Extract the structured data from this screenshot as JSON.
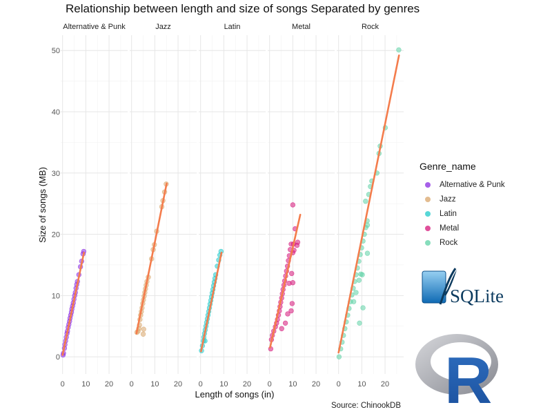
{
  "chart_data": {
    "type": "scatter",
    "title": "Relationship between length and size of songs Separated by genres",
    "xlabel": "Length of songs (in)",
    "ylabel": "Size of songs (MB)",
    "xlim": [
      -0.8,
      28
    ],
    "ylim": [
      -2.8,
      52.5
    ],
    "x_ticks": [
      0,
      10,
      20
    ],
    "y_ticks": [
      0,
      10,
      20,
      30,
      40,
      50
    ],
    "grid": true,
    "facets": [
      "Alternative & Punk",
      "Jazz",
      "Latin",
      "Metal",
      "Rock"
    ],
    "legend_title": "Genre_name",
    "legend_position": "right",
    "trend_color": "#f47c4c",
    "series": [
      {
        "name": "Alternative & Punk",
        "color": "#8a2be2",
        "points": [
          [
            0.2,
            0.3
          ],
          [
            0.4,
            0.6
          ],
          [
            0.8,
            1.4
          ],
          [
            1.0,
            2.0
          ],
          [
            1.3,
            2.6
          ],
          [
            1.6,
            3.2
          ],
          [
            1.9,
            3.8
          ],
          [
            2.1,
            4.2
          ],
          [
            2.4,
            4.8
          ],
          [
            2.7,
            5.3
          ],
          [
            3.0,
            5.8
          ],
          [
            3.2,
            6.3
          ],
          [
            3.5,
            6.8
          ],
          [
            3.8,
            7.3
          ],
          [
            4.0,
            7.8
          ],
          [
            4.3,
            8.3
          ],
          [
            4.6,
            8.8
          ],
          [
            4.9,
            9.4
          ],
          [
            5.2,
            10.0
          ],
          [
            5.5,
            10.5
          ],
          [
            5.8,
            11.2
          ],
          [
            6.1,
            11.8
          ],
          [
            6.4,
            12.3
          ],
          [
            7.0,
            13.4
          ],
          [
            7.7,
            14.7
          ],
          [
            8.2,
            15.6
          ],
          [
            8.8,
            16.8
          ],
          [
            9.1,
            17.2
          ]
        ],
        "trend": [
          [
            0,
            0.3
          ],
          [
            9.2,
            17.0
          ]
        ]
      },
      {
        "name": "Jazz",
        "color": "#d9a66b",
        "points": [
          [
            2.3,
            4.0
          ],
          [
            2.8,
            4.2
          ],
          [
            3.1,
            4.6
          ],
          [
            3.4,
            5.2
          ],
          [
            3.6,
            6.1
          ],
          [
            3.9,
            6.8
          ],
          [
            4.2,
            7.4
          ],
          [
            4.5,
            8.0
          ],
          [
            4.8,
            8.7
          ],
          [
            5.1,
            9.3
          ],
          [
            5.4,
            9.9
          ],
          [
            5.7,
            10.5
          ],
          [
            6.0,
            11.1
          ],
          [
            6.3,
            11.7
          ],
          [
            6.6,
            12.3
          ],
          [
            7.2,
            13.0
          ],
          [
            8.6,
            16.0
          ],
          [
            9.3,
            17.5
          ],
          [
            9.8,
            18.3
          ],
          [
            10.8,
            20.5
          ],
          [
            13.0,
            24.5
          ],
          [
            13.5,
            25.5
          ],
          [
            14.2,
            26.9
          ],
          [
            14.9,
            28.2
          ],
          [
            5.0,
            3.7
          ],
          [
            5.2,
            4.5
          ]
        ],
        "trend": [
          [
            2.1,
            3.8
          ],
          [
            15.1,
            28.3
          ]
        ]
      },
      {
        "name": "Latin",
        "color": "#20c9c9",
        "points": [
          [
            0.4,
            1.0
          ],
          [
            0.8,
            1.8
          ],
          [
            1.2,
            2.6
          ],
          [
            1.4,
            3.2
          ],
          [
            1.7,
            3.8
          ],
          [
            2.0,
            4.4
          ],
          [
            2.3,
            5.0
          ],
          [
            2.6,
            5.6
          ],
          [
            2.9,
            6.2
          ],
          [
            3.2,
            6.8
          ],
          [
            3.5,
            7.4
          ],
          [
            3.8,
            8.0
          ],
          [
            4.1,
            8.6
          ],
          [
            4.4,
            9.2
          ],
          [
            4.7,
            9.8
          ],
          [
            5.0,
            10.4
          ],
          [
            5.3,
            11.0
          ],
          [
            5.6,
            11.6
          ],
          [
            5.9,
            12.2
          ],
          [
            6.2,
            12.8
          ],
          [
            6.5,
            13.4
          ],
          [
            7.2,
            14.8
          ],
          [
            7.8,
            15.8
          ],
          [
            8.3,
            16.6
          ],
          [
            8.8,
            17.2
          ],
          [
            1.9,
            2.6
          ]
        ],
        "trend": [
          [
            0.2,
            0.9
          ],
          [
            9.0,
            17.0
          ]
        ]
      },
      {
        "name": "Metal",
        "color": "#d6157a",
        "points": [
          [
            0.5,
            1.3
          ],
          [
            0.8,
            2.8
          ],
          [
            1.2,
            3.5
          ],
          [
            1.8,
            4.2
          ],
          [
            2.5,
            4.9
          ],
          [
            3.0,
            5.5
          ],
          [
            3.4,
            6.1
          ],
          [
            3.8,
            6.8
          ],
          [
            4.2,
            7.5
          ],
          [
            4.5,
            8.2
          ],
          [
            4.8,
            8.9
          ],
          [
            5.2,
            9.6
          ],
          [
            5.5,
            10.3
          ],
          [
            5.8,
            11.0
          ],
          [
            6.2,
            11.7
          ],
          [
            6.5,
            12.4
          ],
          [
            6.9,
            13.2
          ],
          [
            7.3,
            14.0
          ],
          [
            7.7,
            14.8
          ],
          [
            8.1,
            15.7
          ],
          [
            8.5,
            16.5
          ],
          [
            8.9,
            17.5
          ],
          [
            9.3,
            18.4
          ],
          [
            10.0,
            17.0
          ],
          [
            10.5,
            17.4
          ],
          [
            10.3,
            18.4
          ],
          [
            11.8,
            18.2
          ],
          [
            12.1,
            18.7
          ],
          [
            11.0,
            20.9
          ],
          [
            10.0,
            24.8
          ],
          [
            8.4,
            12.0
          ],
          [
            9.5,
            13.6
          ],
          [
            7.8,
            7.0
          ],
          [
            6.8,
            5.5
          ],
          [
            5.2,
            4.6
          ],
          [
            9.7,
            8.7
          ],
          [
            9.3,
            7.5
          ],
          [
            10.0,
            12.1
          ]
        ],
        "trend": [
          [
            0.2,
            1.5
          ],
          [
            13.2,
            23.2
          ]
        ]
      },
      {
        "name": "Rock",
        "color": "#5fd1a5",
        "points": [
          [
            0.2,
            0.0
          ],
          [
            0.9,
            1.3
          ],
          [
            1.5,
            2.4
          ],
          [
            2.1,
            3.5
          ],
          [
            2.7,
            4.6
          ],
          [
            3.3,
            5.7
          ],
          [
            3.9,
            6.8
          ],
          [
            4.5,
            7.9
          ],
          [
            5.1,
            9.0
          ],
          [
            5.7,
            10.1
          ],
          [
            6.3,
            11.2
          ],
          [
            6.9,
            12.3
          ],
          [
            7.5,
            13.4
          ],
          [
            8.1,
            14.5
          ],
          [
            8.7,
            15.6
          ],
          [
            9.3,
            16.7
          ],
          [
            9.9,
            17.8
          ],
          [
            10.5,
            18.9
          ],
          [
            11.1,
            20.0
          ],
          [
            11.7,
            21.1
          ],
          [
            12.3,
            22.2
          ],
          [
            6.5,
            9.0
          ],
          [
            7.5,
            10.5
          ],
          [
            8.8,
            12.5
          ],
          [
            9.6,
            13.5
          ],
          [
            10.2,
            13.4
          ],
          [
            9.0,
            5.5
          ],
          [
            10.5,
            8.0
          ],
          [
            12.4,
            16.9
          ],
          [
            12.4,
            21.5
          ],
          [
            11.6,
            25.4
          ],
          [
            13.0,
            26.5
          ],
          [
            13.7,
            27.8
          ],
          [
            14.3,
            28.7
          ],
          [
            16.5,
            30.0
          ],
          [
            17.4,
            33.2
          ],
          [
            17.9,
            34.4
          ],
          [
            20.1,
            37.4
          ],
          [
            25.9,
            50.1
          ]
        ],
        "trend": [
          [
            0,
            0.7
          ],
          [
            26.0,
            49.2
          ]
        ]
      }
    ]
  },
  "legend": {
    "title": "Genre_name"
  },
  "caption": "Source: ChinookDB",
  "logos": {
    "sqlite_text": "SQLite",
    "r_text": "R"
  }
}
